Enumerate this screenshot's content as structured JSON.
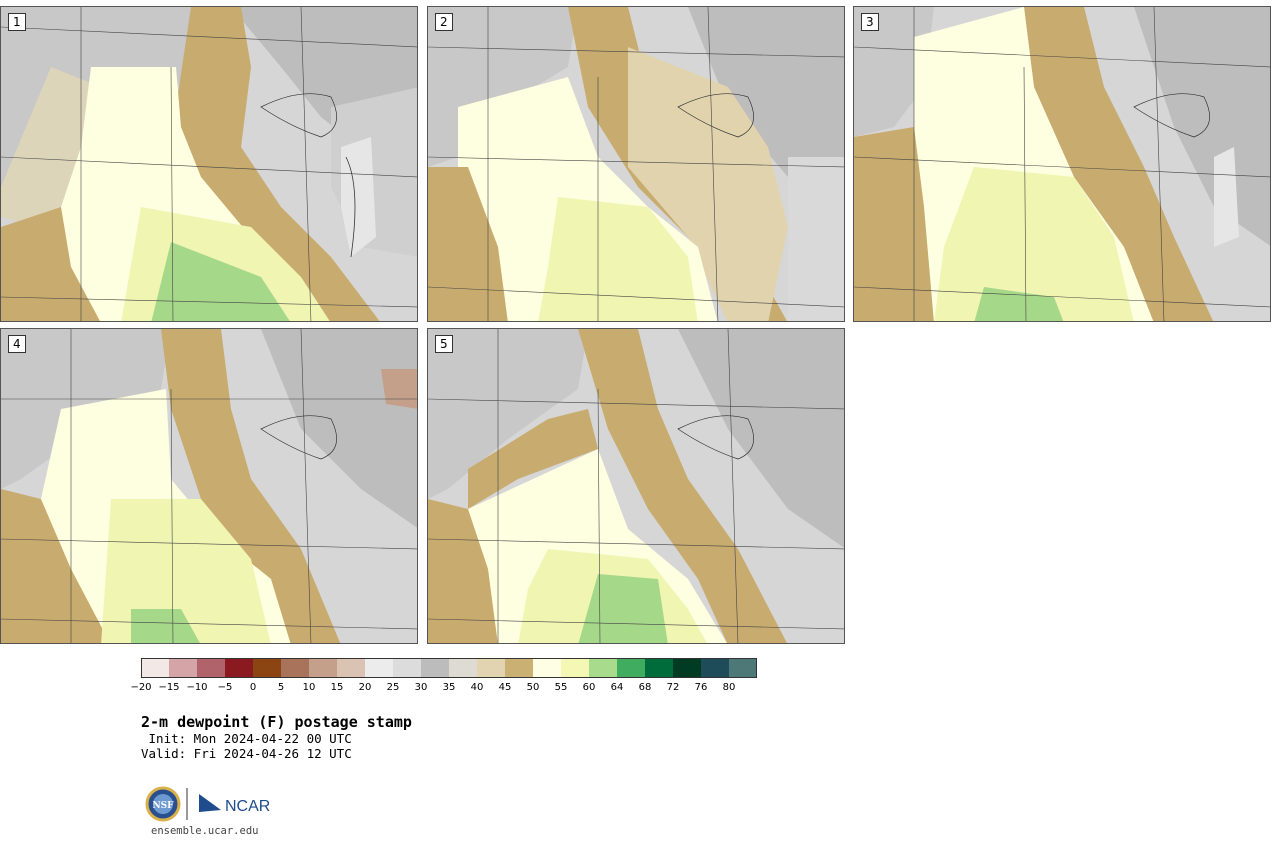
{
  "panels": [
    {
      "label": "1"
    },
    {
      "label": "2"
    },
    {
      "label": "3"
    },
    {
      "label": "4"
    },
    {
      "label": "5"
    }
  ],
  "colorbar": {
    "ticks": [
      "−20",
      "−15",
      "−10",
      "−5",
      "0",
      "5",
      "10",
      "15",
      "20",
      "25",
      "30",
      "35",
      "40",
      "45",
      "50",
      "55",
      "60",
      "64",
      "68",
      "72",
      "76",
      "80"
    ],
    "colors": [
      "#f2e8e6",
      "#d4a4a6",
      "#b0636a",
      "#8b1a20",
      "#8b4513",
      "#a8735a",
      "#c4a08a",
      "#dbc3b4",
      "#ececec",
      "#dcdcdc",
      "#bcbcbc",
      "#dedcd2",
      "#e2d4b0",
      "#cbb074",
      "#fefee4",
      "#f4f8b4",
      "#a8dc8c",
      "#40ac60",
      "#006c3c",
      "#003c24",
      "#1e4c58",
      "#4e7878"
    ]
  },
  "title": "2-m dewpoint (F) postage stamp",
  "init": " Init: Mon 2024-04-22 00 UTC",
  "valid": "Valid: Fri 2024-04-26 12 UTC",
  "logo": {
    "left_text": "NSF",
    "right_text": "NCAR"
  },
  "site": "ensemble.ucar.edu"
}
